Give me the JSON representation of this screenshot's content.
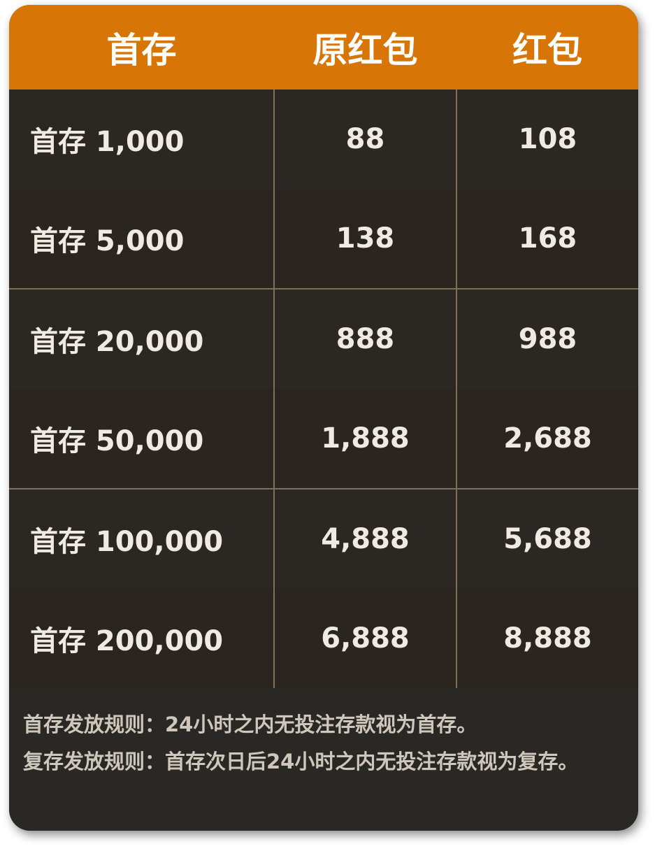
{
  "table": {
    "header": [
      "首存",
      "原红包",
      "红包"
    ],
    "rows": [
      [
        "首存 1,000",
        "88",
        "108"
      ],
      [
        "首存 5,000",
        "138",
        "168"
      ],
      [
        "首存 20,000",
        "888",
        "988"
      ],
      [
        "首存 50,000",
        "1,888",
        "2,688"
      ],
      [
        "首存 100,000",
        "4,888",
        "5,688"
      ],
      [
        "首存 200,000",
        "6,888",
        "8,888"
      ]
    ]
  },
  "notes": [
    "首存发放规则：24小时之内无投注存款视为首存。",
    "复存发放规则：首存次日后24小时之内无投注存款视为复存。"
  ]
}
